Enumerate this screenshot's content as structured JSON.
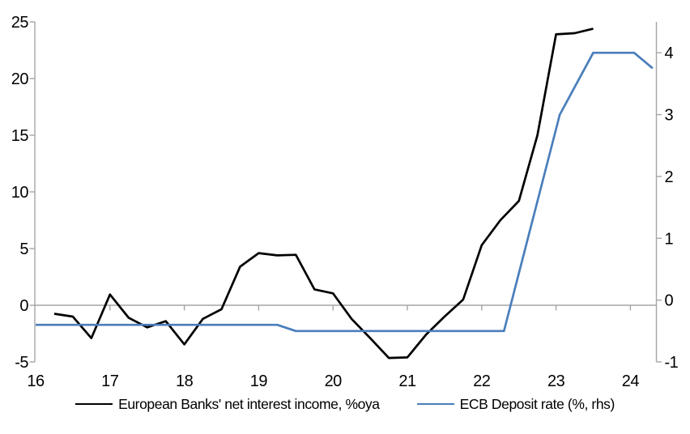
{
  "chart_data": {
    "type": "line",
    "title": "",
    "x_axis": {
      "tick_values": [
        16,
        17,
        18,
        19,
        20,
        21,
        22,
        23,
        24
      ],
      "tick_labels": [
        "16",
        "17",
        "18",
        "19",
        "20",
        "21",
        "22",
        "23",
        "24"
      ],
      "range": [
        16,
        24.35
      ],
      "tick_position": "zero-line",
      "label_position": "bottom"
    },
    "left_axis": {
      "tick_values": [
        -5,
        0,
        5,
        10,
        15,
        20,
        25
      ],
      "tick_labels": [
        "-5",
        "0",
        "5",
        "10",
        "15",
        "20",
        "25"
      ],
      "range": [
        -5,
        25
      ]
    },
    "right_axis": {
      "tick_values": [
        -1,
        0,
        1,
        2,
        3,
        4
      ],
      "tick_labels": [
        "-1",
        "0",
        "1",
        "2",
        "3",
        "4"
      ],
      "range": [
        -1,
        4.5
      ]
    },
    "grid": "zero-gridline-only",
    "series": [
      {
        "name": "European Banks' net interest income, %oya",
        "axis": "left",
        "color": "#000000",
        "points": [
          [
            16.25,
            -0.75
          ],
          [
            16.5,
            -1.0
          ],
          [
            16.75,
            -2.9
          ],
          [
            17.0,
            0.95
          ],
          [
            17.25,
            -1.1
          ],
          [
            17.5,
            -1.95
          ],
          [
            17.75,
            -1.4
          ],
          [
            18.0,
            -3.45
          ],
          [
            18.25,
            -1.2
          ],
          [
            18.5,
            -0.35
          ],
          [
            18.75,
            3.4
          ],
          [
            19.0,
            4.6
          ],
          [
            19.25,
            4.4
          ],
          [
            19.5,
            4.45
          ],
          [
            19.75,
            1.4
          ],
          [
            20.0,
            1.05
          ],
          [
            20.25,
            -1.2
          ],
          [
            20.5,
            -2.9
          ],
          [
            20.75,
            -4.65
          ],
          [
            21.0,
            -4.6
          ],
          [
            21.25,
            -2.6
          ],
          [
            21.5,
            -1.0
          ],
          [
            21.75,
            0.5
          ],
          [
            22.0,
            5.3
          ],
          [
            22.25,
            7.5
          ],
          [
            22.5,
            9.2
          ],
          [
            22.75,
            15.0
          ],
          [
            23.0,
            23.9
          ],
          [
            23.25,
            24.0
          ],
          [
            23.5,
            24.4
          ]
        ]
      },
      {
        "name": "ECB Deposit rate (%, rhs)",
        "axis": "right",
        "color": "#4a7ebb",
        "points": [
          [
            16.0,
            -0.4
          ],
          [
            19.25,
            -0.4
          ],
          [
            19.5,
            -0.5
          ],
          [
            22.3,
            -0.5
          ],
          [
            23.05,
            3.0
          ],
          [
            23.5,
            4.0
          ],
          [
            24.05,
            4.0
          ],
          [
            24.3,
            3.75
          ]
        ]
      }
    ],
    "legend": {
      "position": "bottom",
      "entries": [
        "European Banks' net interest income, %oya",
        "ECB Deposit rate (%, rhs)"
      ]
    },
    "colors": {
      "axis": "#a6a6a6",
      "zero_gridline": "#a6a6a6",
      "text": "#000000",
      "background": "#ffffff"
    }
  }
}
